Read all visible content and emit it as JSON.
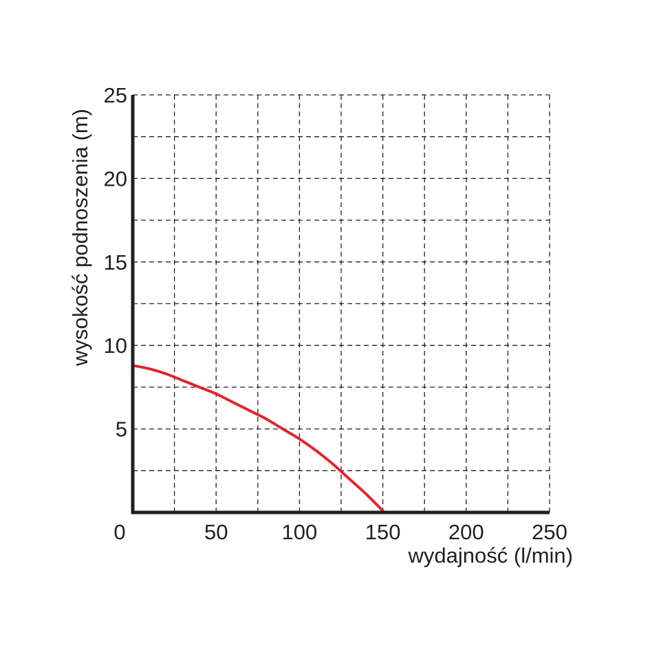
{
  "chart_data": {
    "type": "line",
    "title": "",
    "xlabel": "wydajność (l/min)",
    "ylabel": "wysokość podnoszenia (m)",
    "xlim": [
      0,
      250
    ],
    "ylim": [
      0,
      25
    ],
    "xticks": [
      "0",
      "50",
      "100",
      "150",
      "200",
      "250"
    ],
    "yticks": [
      "5",
      "10",
      "15",
      "20",
      "25"
    ],
    "grid": true,
    "grid_step_x": 25,
    "grid_step_y": 2.5,
    "series": [
      {
        "color": "#e3242b",
        "x": [
          0,
          10,
          20,
          30,
          40,
          50,
          60,
          70,
          80,
          90,
          100,
          110,
          120,
          130,
          140,
          150
        ],
        "y": [
          8.8,
          8.6,
          8.3,
          7.9,
          7.5,
          7.1,
          6.6,
          6.1,
          5.6,
          5.0,
          4.4,
          3.7,
          2.9,
          2.0,
          1.1,
          0.1
        ]
      }
    ]
  }
}
